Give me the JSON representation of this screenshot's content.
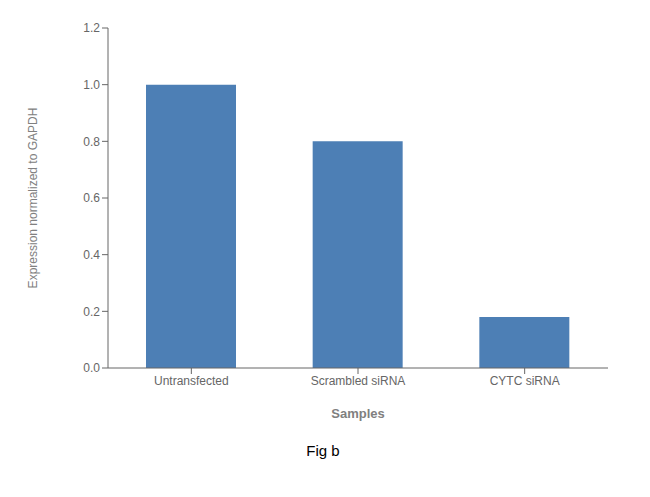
{
  "chart_data": {
    "type": "bar",
    "categories": [
      "Untransfected",
      "Scrambled siRNA",
      "CYTC siRNA"
    ],
    "values": [
      1.0,
      0.8,
      0.18
    ],
    "color": "#4d7fb5",
    "xlabel": "Samples",
    "ylabel": "Expression normalized to GAPDH",
    "ylim": [
      0,
      1.2
    ],
    "yticks": [
      {
        "value": 0,
        "label": "0.0"
      },
      0.2,
      0.4,
      0.6,
      0.8,
      {
        "value": 1.0,
        "label": "1.0"
      },
      1.2
    ],
    "grid": false,
    "annotations": [
      "Fig b"
    ]
  }
}
